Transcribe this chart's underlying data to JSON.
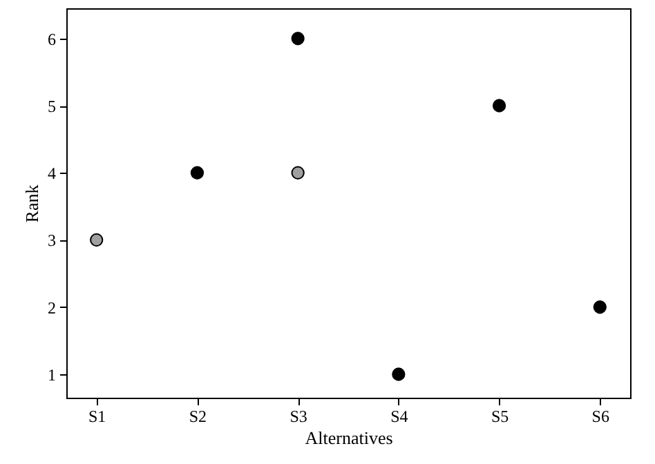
{
  "chart_data": {
    "type": "scatter",
    "xlabel": "Alternatives",
    "ylabel": "Rank",
    "categories": [
      "S1",
      "S2",
      "S3",
      "S4",
      "S5",
      "S6"
    ],
    "series": [
      {
        "color": "#000000",
        "values": [
          null,
          4,
          6,
          1,
          5,
          2
        ]
      },
      {
        "color": "#a0a0a0",
        "values": [
          3,
          null,
          4,
          null,
          null,
          null
        ]
      }
    ],
    "ylim": [
      0.65,
      6.45
    ],
    "yticks": [
      1,
      2,
      3,
      4,
      5,
      6
    ],
    "grid": false,
    "marker": "circle"
  }
}
